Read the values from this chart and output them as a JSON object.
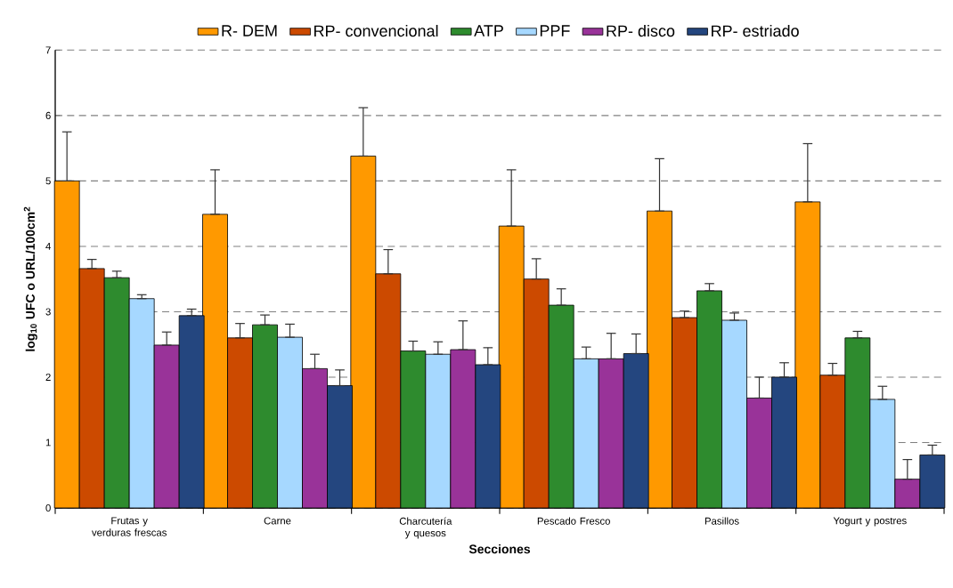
{
  "chart_data": {
    "type": "bar",
    "xlabel": "Secciones",
    "ylabel": "log$_{10}$ UFC o URL/100cm$^{2}$",
    "categories": [
      "Frutas y verduras frescas",
      "Carne",
      "Charcutería y quesos",
      "Pescado Fresco",
      "Pasillos",
      "Yogurt y postres"
    ],
    "series": [
      {
        "name": "R- DEM",
        "color": "#ff9900",
        "values": [
          5.0,
          4.49,
          5.38,
          4.31,
          4.54,
          4.68
        ],
        "errors": [
          [
            5.0,
            5.75
          ],
          [
            4.49,
            5.17
          ],
          [
            5.38,
            6.12
          ],
          [
            4.31,
            5.17
          ],
          [
            4.54,
            5.34
          ],
          [
            4.68,
            5.57
          ]
        ]
      },
      {
        "name": "RP- convencional",
        "color": "#cc4a00",
        "values": [
          3.66,
          2.6,
          3.58,
          3.5,
          2.91,
          2.03
        ],
        "errors": [
          [
            3.66,
            3.8
          ],
          [
            2.6,
            2.82
          ],
          [
            3.58,
            3.95
          ],
          [
            3.5,
            3.81
          ],
          [
            2.91,
            3.01
          ],
          [
            2.03,
            2.21
          ]
        ]
      },
      {
        "name": "ATP",
        "color": "#2e8b2e",
        "values": [
          3.52,
          2.8,
          2.4,
          3.1,
          3.32,
          2.6
        ],
        "errors": [
          [
            3.52,
            3.62
          ],
          [
            2.8,
            2.95
          ],
          [
            2.4,
            2.55
          ],
          [
            3.1,
            3.35
          ],
          [
            3.32,
            3.43
          ],
          [
            2.6,
            2.7
          ]
        ]
      },
      {
        "name": "PPF",
        "color": "#a6d8ff",
        "values": [
          3.2,
          2.61,
          2.35,
          2.28,
          2.87,
          1.66
        ],
        "errors": [
          [
            3.2,
            3.26
          ],
          [
            2.61,
            2.81
          ],
          [
            2.35,
            2.54
          ],
          [
            2.28,
            2.46
          ],
          [
            2.87,
            2.98
          ],
          [
            1.66,
            1.86
          ]
        ]
      },
      {
        "name": "RP- disco",
        "color": "#993399",
        "values": [
          2.49,
          2.13,
          2.42,
          2.28,
          1.68,
          0.44
        ],
        "errors": [
          [
            2.49,
            2.69
          ],
          [
            2.13,
            2.35
          ],
          [
            2.42,
            2.86
          ],
          [
            2.28,
            2.67
          ],
          [
            1.68,
            2.0
          ],
          [
            0.44,
            0.74
          ]
        ]
      },
      {
        "name": "RP- estriado",
        "color": "#24467f",
        "values": [
          2.94,
          1.87,
          2.19,
          2.36,
          2.0,
          0.81
        ],
        "errors": [
          [
            2.94,
            3.04
          ],
          [
            1.87,
            2.11
          ],
          [
            2.19,
            2.45
          ],
          [
            2.36,
            2.66
          ],
          [
            2.0,
            2.22
          ],
          [
            0.81,
            0.96
          ]
        ]
      }
    ],
    "ylim": [
      0,
      7
    ],
    "yticks": [
      0,
      1,
      2,
      3,
      4,
      5,
      6,
      7
    ],
    "grid": "y",
    "legend": "top"
  }
}
